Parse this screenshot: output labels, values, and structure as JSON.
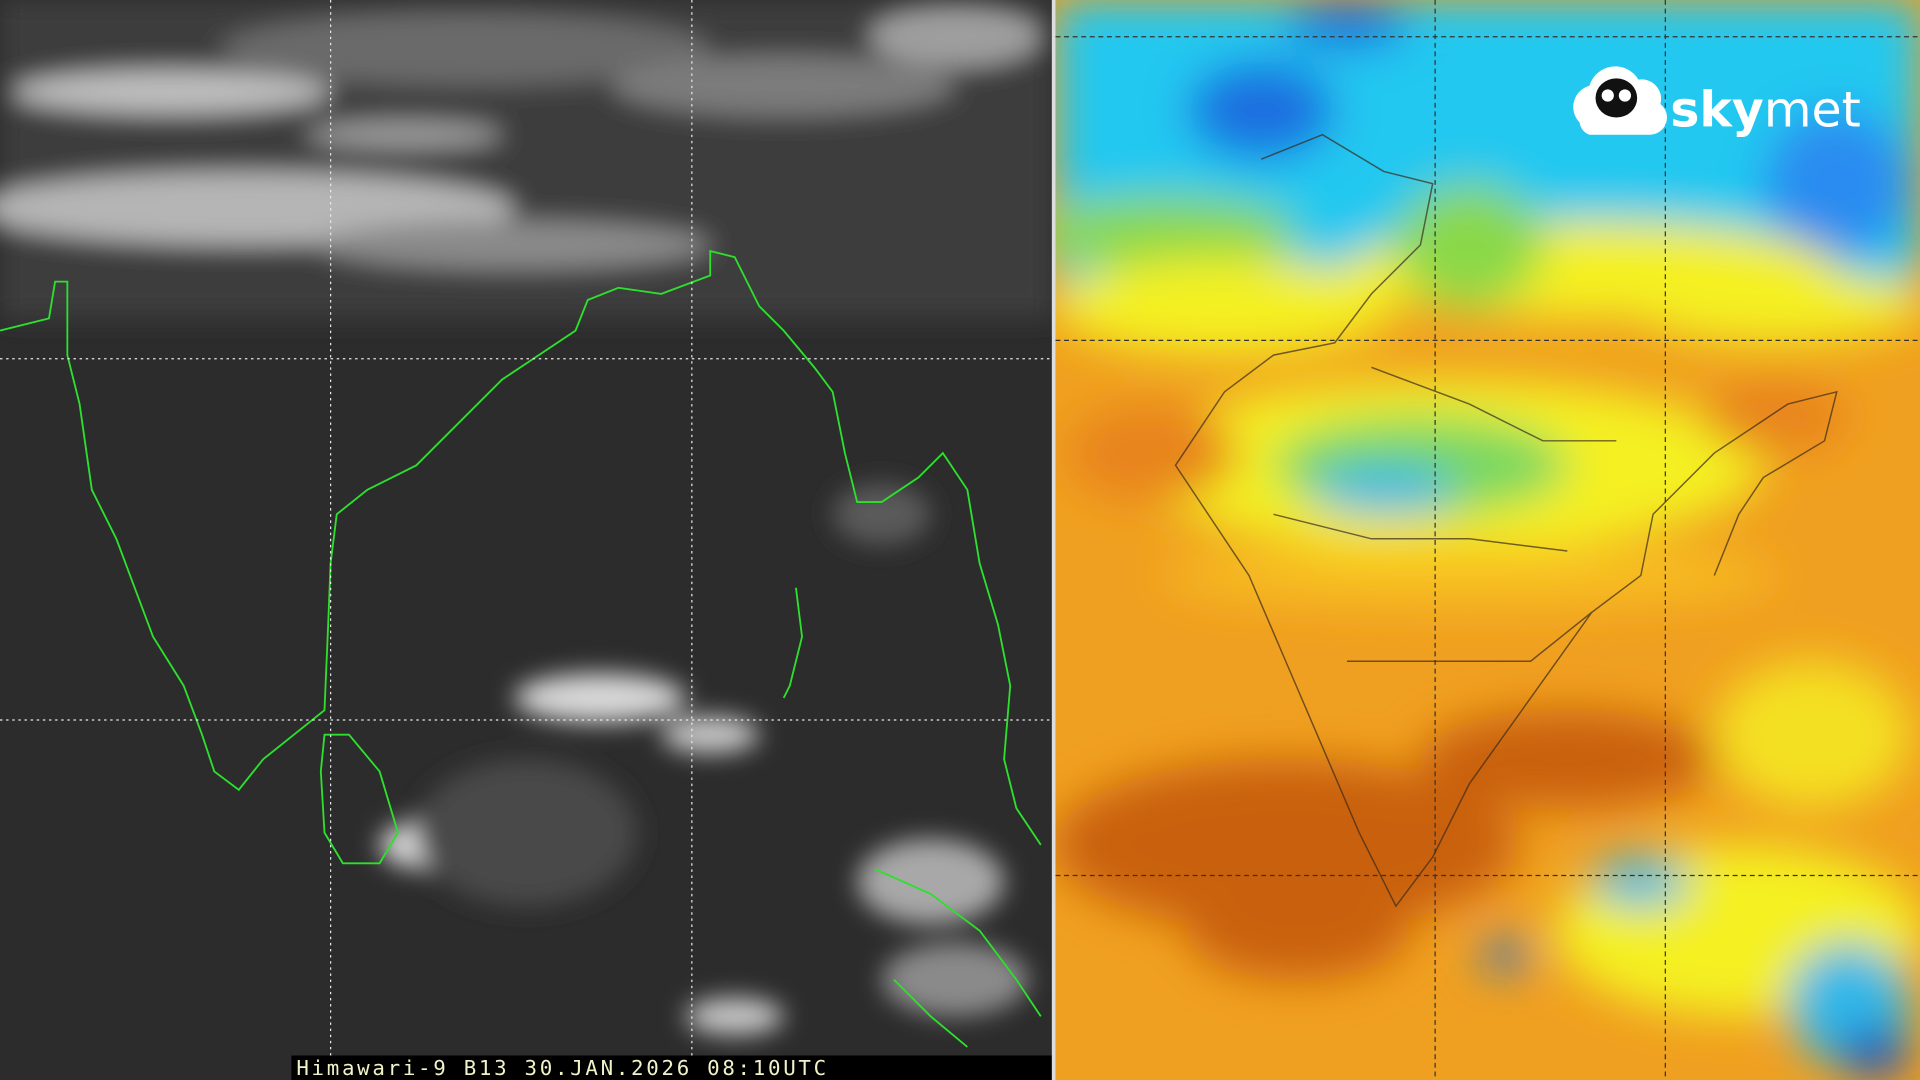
{
  "left_panel": {
    "caption": "Himawari-9 B13 30.JAN.2026 08:10UTC"
  },
  "right_panel": {
    "logo": {
      "bold": "sky",
      "light": "met"
    }
  }
}
